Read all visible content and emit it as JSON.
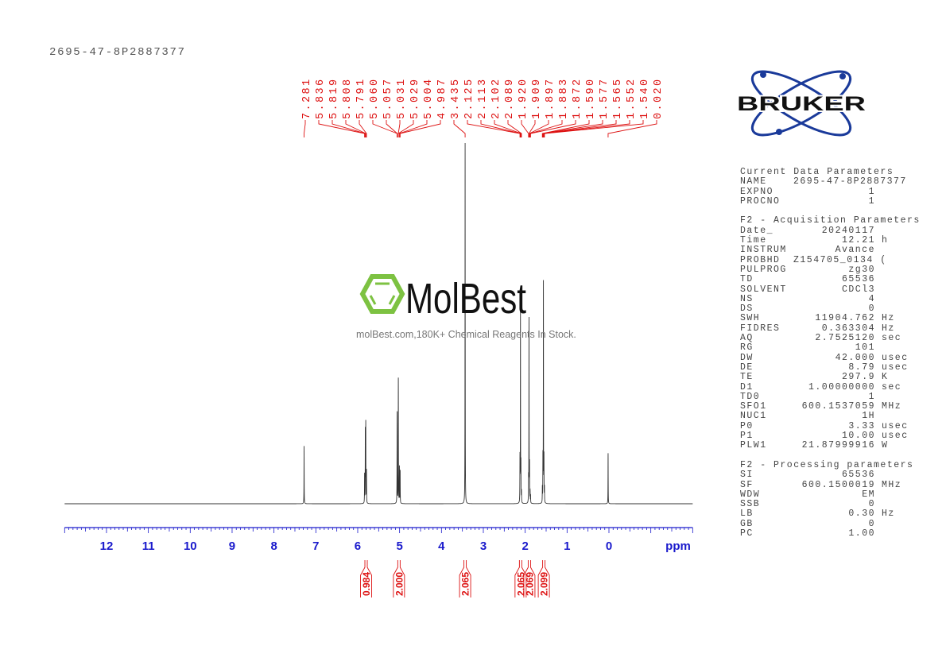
{
  "header": {
    "sample_name": "2695-47-8P2887377"
  },
  "watermark": {
    "brand": "MolBest",
    "tagline": "molBest.com,180K+ Chemical Reagents In Stock."
  },
  "logo": {
    "brand": "BRUKER",
    "color": "#1a3a9a"
  },
  "parameters": {
    "sections": [
      {
        "title": "Current Data Parameters",
        "rows": [
          {
            "name": "NAME",
            "value": "2695-47-8P2887377",
            "unit": ""
          },
          {
            "name": "EXPNO",
            "value": "1",
            "unit": ""
          },
          {
            "name": "PROCNO",
            "value": "1",
            "unit": ""
          }
        ]
      },
      {
        "title": "F2 - Acquisition Parameters",
        "rows": [
          {
            "name": "Date_",
            "value": "20240117",
            "unit": ""
          },
          {
            "name": "Time",
            "value": "12.21",
            "unit": "h"
          },
          {
            "name": "INSTRUM",
            "value": "Avance",
            "unit": ""
          },
          {
            "name": "PROBHD",
            "value": "Z154705_0134 (",
            "unit": ""
          },
          {
            "name": "PULPROG",
            "value": "zg30",
            "unit": ""
          },
          {
            "name": "TD",
            "value": "65536",
            "unit": ""
          },
          {
            "name": "SOLVENT",
            "value": "CDCl3",
            "unit": ""
          },
          {
            "name": "NS",
            "value": "4",
            "unit": ""
          },
          {
            "name": "DS",
            "value": "0",
            "unit": ""
          },
          {
            "name": "SWH",
            "value": "11904.762",
            "unit": "Hz"
          },
          {
            "name": "FIDRES",
            "value": "0.363304",
            "unit": "Hz"
          },
          {
            "name": "AQ",
            "value": "2.7525120",
            "unit": "sec"
          },
          {
            "name": "RG",
            "value": "101",
            "unit": ""
          },
          {
            "name": "DW",
            "value": "42.000",
            "unit": "usec"
          },
          {
            "name": "DE",
            "value": "8.79",
            "unit": "usec"
          },
          {
            "name": "TE",
            "value": "297.9",
            "unit": "K"
          },
          {
            "name": "D1",
            "value": "1.00000000",
            "unit": "sec"
          },
          {
            "name": "TD0",
            "value": "1",
            "unit": ""
          },
          {
            "name": "SFO1",
            "value": "600.1537059",
            "unit": "MHz"
          },
          {
            "name": "NUC1",
            "value": "1H",
            "unit": ""
          },
          {
            "name": "P0",
            "value": "3.33",
            "unit": "usec"
          },
          {
            "name": "P1",
            "value": "10.00",
            "unit": "usec"
          },
          {
            "name": "PLW1",
            "value": "21.87999916",
            "unit": "W"
          }
        ]
      },
      {
        "title": "F2 - Processing parameters",
        "rows": [
          {
            "name": "SI",
            "value": "65536",
            "unit": ""
          },
          {
            "name": "SF",
            "value": "600.1500019",
            "unit": "MHz"
          },
          {
            "name": "WDW",
            "value": "EM",
            "unit": ""
          },
          {
            "name": "SSB",
            "value": "0",
            "unit": ""
          },
          {
            "name": "LB",
            "value": "0.30",
            "unit": "Hz"
          },
          {
            "name": "GB",
            "value": "0",
            "unit": ""
          },
          {
            "name": "PC",
            "value": "1.00",
            "unit": ""
          }
        ]
      }
    ]
  },
  "chart_data": {
    "type": "line",
    "xlabel": "ppm",
    "xlim": [
      13,
      -2
    ],
    "xticks": [
      "12",
      "11",
      "10",
      "9",
      "8",
      "7",
      "6",
      "5",
      "4",
      "3",
      "2",
      "1",
      "0"
    ],
    "grid": false,
    "colors": {
      "spectrum": "#333333",
      "axis": "#1a1acc",
      "annotation": "#dd1111"
    },
    "peaks": [
      {
        "ppm": 7.281,
        "label": "7.281",
        "intensity": 16
      },
      {
        "ppm": 5.836,
        "label": "5.836",
        "intensity": 8
      },
      {
        "ppm": 5.819,
        "label": "5.819",
        "intensity": 20
      },
      {
        "ppm": 5.808,
        "label": "5.808",
        "intensity": 22
      },
      {
        "ppm": 5.791,
        "label": "5.791",
        "intensity": 9
      },
      {
        "ppm": 5.06,
        "label": "5.060",
        "intensity": 12
      },
      {
        "ppm": 5.057,
        "label": "5.057",
        "intensity": 20
      },
      {
        "ppm": 5.031,
        "label": "5.031",
        "intensity": 18
      },
      {
        "ppm": 5.029,
        "label": "5.029",
        "intensity": 22
      },
      {
        "ppm": 5.004,
        "label": "5.004",
        "intensity": 10
      },
      {
        "ppm": 4.987,
        "label": "4.987",
        "intensity": 9
      },
      {
        "ppm": 3.435,
        "label": "3.435",
        "intensity": 100
      },
      {
        "ppm": 2.125,
        "label": "2.125",
        "intensity": 12
      },
      {
        "ppm": 2.113,
        "label": "2.113",
        "intensity": 53
      },
      {
        "ppm": 2.102,
        "label": "2.102",
        "intensity": 10
      },
      {
        "ppm": 2.089,
        "label": "2.089",
        "intensity": 3
      },
      {
        "ppm": 1.92,
        "label": "1.920",
        "intensity": 6
      },
      {
        "ppm": 1.909,
        "label": "1.909",
        "intensity": 51
      },
      {
        "ppm": 1.897,
        "label": "1.897",
        "intensity": 10
      },
      {
        "ppm": 1.883,
        "label": "1.883",
        "intensity": 3
      },
      {
        "ppm": 1.872,
        "label": "1.872",
        "intensity": 2
      },
      {
        "ppm": 1.59,
        "label": "1.590",
        "intensity": 4
      },
      {
        "ppm": 1.577,
        "label": "1.577",
        "intensity": 12
      },
      {
        "ppm": 1.565,
        "label": "1.565",
        "intensity": 61
      },
      {
        "ppm": 1.552,
        "label": "1.552",
        "intensity": 12
      },
      {
        "ppm": 1.54,
        "label": "1.540",
        "intensity": 4
      },
      {
        "ppm": 0.02,
        "label": "0.020",
        "intensity": 14
      }
    ],
    "integrals": [
      {
        "range": [
          5.85,
          5.75
        ],
        "value": "0.984"
      },
      {
        "range": [
          5.08,
          4.95
        ],
        "value": "2.000"
      },
      {
        "range": [
          3.48,
          3.39
        ],
        "value": "2.065"
      },
      {
        "range": [
          2.16,
          2.06
        ],
        "value": "2.065"
      },
      {
        "range": [
          1.95,
          1.85
        ],
        "value": "2.069"
      },
      {
        "range": [
          1.61,
          1.5
        ],
        "value": "2.099"
      }
    ]
  }
}
